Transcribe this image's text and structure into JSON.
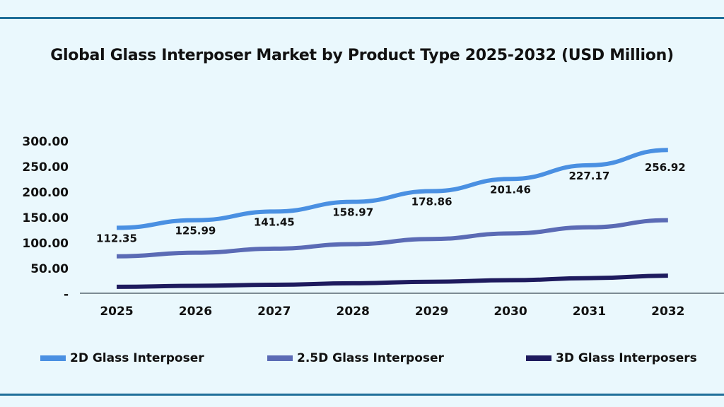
{
  "chart_data": {
    "type": "line",
    "title": "Global Glass Interposer Market by Product Type 2025-2032 (USD Million)",
    "xlabel": "",
    "ylabel": "",
    "categories": [
      "2025",
      "2026",
      "2027",
      "2028",
      "2029",
      "2030",
      "2031",
      "2032"
    ],
    "y_tick_labels": [
      "-",
      "50.00",
      "100.00",
      "150.00",
      "200.00",
      "250.00",
      "300.00"
    ],
    "ylim": [
      0,
      300
    ],
    "grid": false,
    "legend_position": "bottom",
    "series": [
      {
        "name": "2D Glass Interposer",
        "color": "#4a90e2",
        "values": [
          130,
          145,
          162,
          181,
          202,
          226,
          253,
          283
        ]
      },
      {
        "name": "2.5D Glass Interposer",
        "color": "#5b6bb5",
        "values": [
          74,
          81,
          89,
          98,
          108,
          119,
          131,
          145
        ]
      },
      {
        "name": "3D Glass Interposers",
        "color": "#1e1b5e",
        "values": [
          14,
          16,
          18,
          21,
          24,
          27,
          31,
          36
        ]
      }
    ],
    "data_labels": [
      "112.35",
      "125.99",
      "141.45",
      "158.97",
      "178.86",
      "201.46",
      "227.17",
      "256.92"
    ]
  }
}
